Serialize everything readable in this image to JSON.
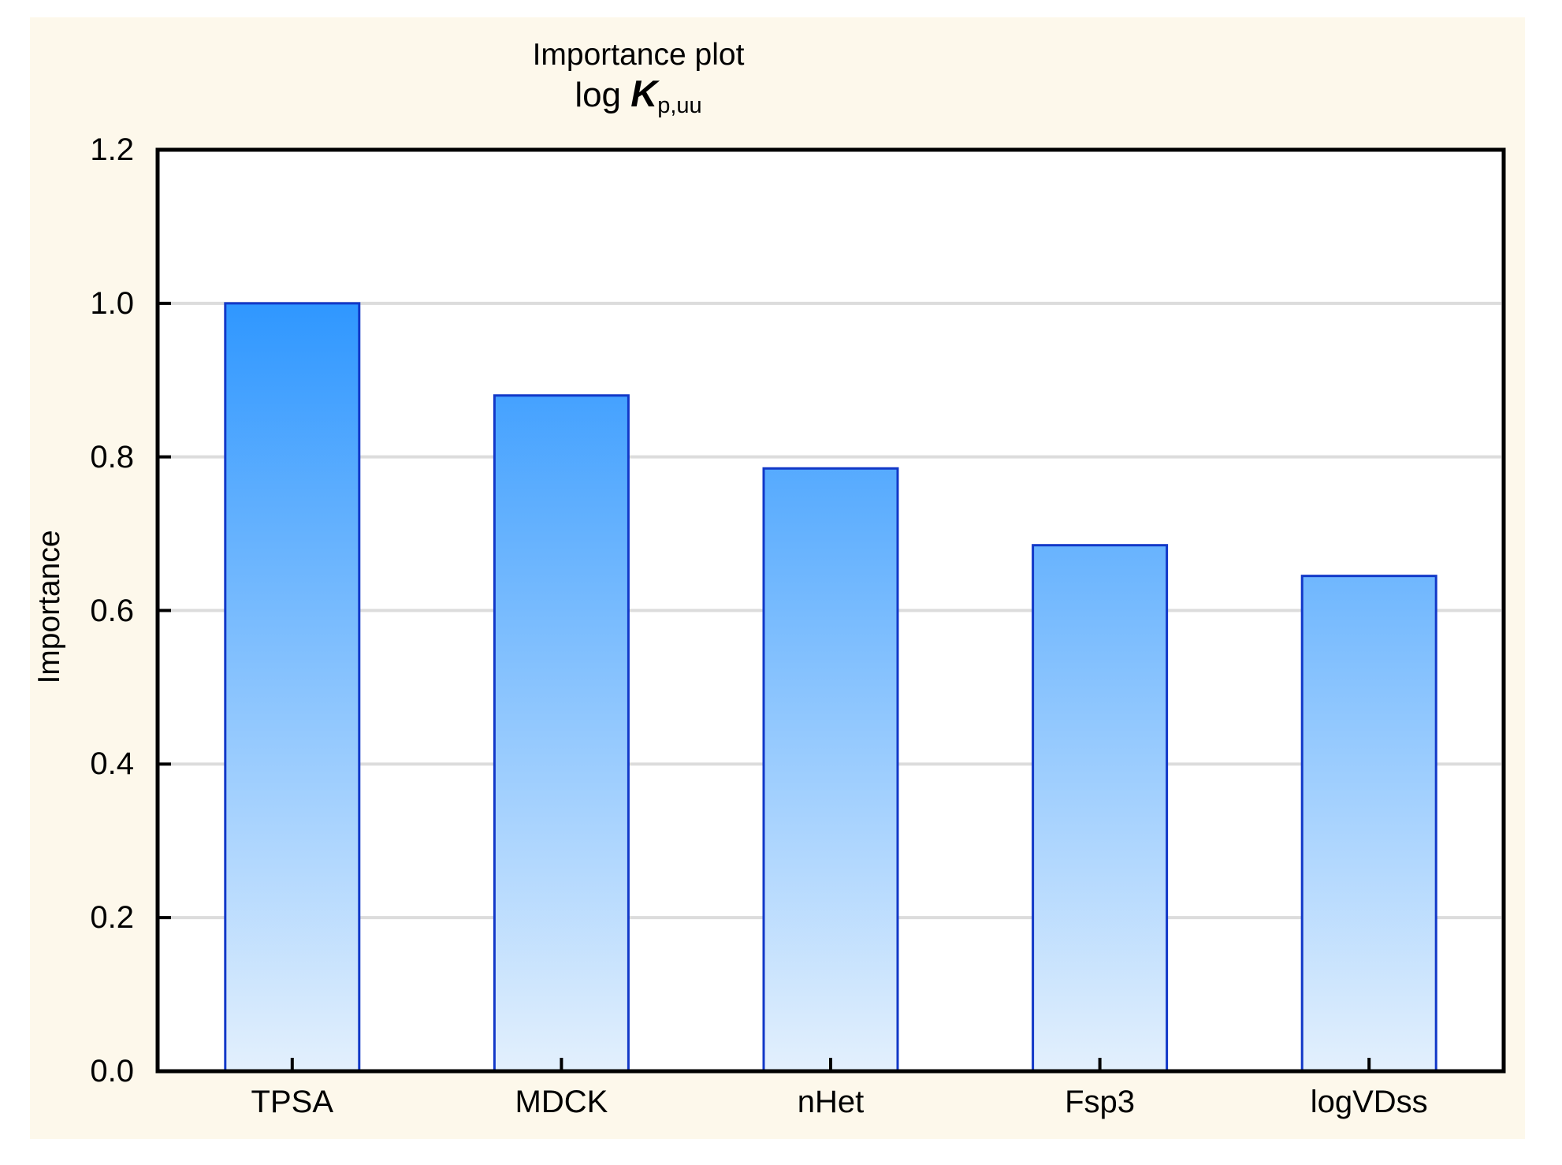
{
  "page": {
    "background": "#FFFFFF",
    "panel_background": "#FDF8EB"
  },
  "chart_data": {
    "type": "bar",
    "title": "Importance plot",
    "subtitle": {
      "prefix": "log ",
      "symbol": "K",
      "subscript": "p,uu"
    },
    "categories": [
      "TPSA",
      "MDCK",
      "nHet",
      "Fsp3",
      "logVDss"
    ],
    "values": [
      1.0,
      0.88,
      0.785,
      0.685,
      0.645
    ],
    "ylabel": "Importance",
    "ylim": [
      0.0,
      1.2
    ],
    "ytick_step": 0.2,
    "ytick_labels": [
      "0.0",
      "0.2",
      "0.4",
      "0.6",
      "0.8",
      "1.0",
      "1.2"
    ],
    "grid": true,
    "legend": "none",
    "colors": {
      "bar_gradient_top": "#2F97FF",
      "bar_gradient_bottom": "#E3F0FD",
      "bar_border": "#1238C8",
      "plot_background": "#FFFFFF",
      "gridline": "#DCDCDC",
      "axis": "#000000",
      "text": "#000000"
    }
  }
}
